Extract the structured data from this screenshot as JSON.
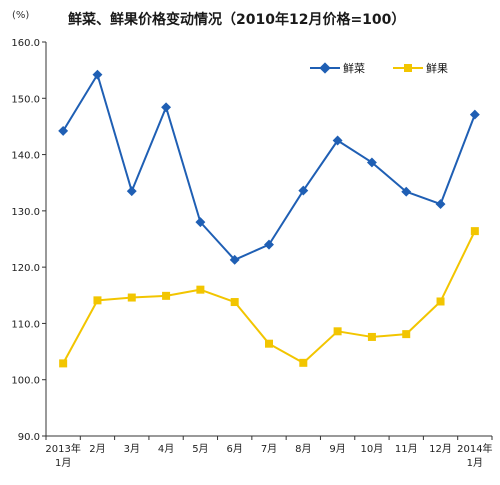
{
  "chart_data": {
    "type": "line",
    "title": "鲜菜、鲜果价格变动情况（2010年12月价格=100）",
    "ylabel": "(%)",
    "ylim": [
      90,
      160
    ],
    "yticks": [
      "90.0",
      "100.0",
      "110.0",
      "120.0",
      "130.0",
      "140.0",
      "150.0",
      "160.0"
    ],
    "categories": [
      [
        "2013年",
        "1月"
      ],
      [
        "2月"
      ],
      [
        "3月"
      ],
      [
        "4月"
      ],
      [
        "5月"
      ],
      [
        "6月"
      ],
      [
        "7月"
      ],
      [
        "8月"
      ],
      [
        "9月"
      ],
      [
        "10月"
      ],
      [
        "11月"
      ],
      [
        "12月"
      ],
      [
        "2014年",
        "1月"
      ]
    ],
    "series": [
      {
        "name": "鲜菜",
        "color": "#1f5fb4",
        "marker": "diamond",
        "values": [
          144.2,
          154.2,
          133.5,
          148.4,
          128.0,
          121.3,
          124.0,
          133.6,
          142.5,
          138.6,
          133.4,
          131.2,
          147.1
        ]
      },
      {
        "name": "鲜果",
        "color": "#f2c500",
        "marker": "square",
        "values": [
          102.9,
          114.1,
          114.6,
          114.9,
          116.0,
          113.8,
          106.4,
          103.0,
          108.6,
          107.6,
          108.1,
          113.9,
          126.4
        ]
      }
    ],
    "grid": false,
    "legend": "top-right"
  }
}
